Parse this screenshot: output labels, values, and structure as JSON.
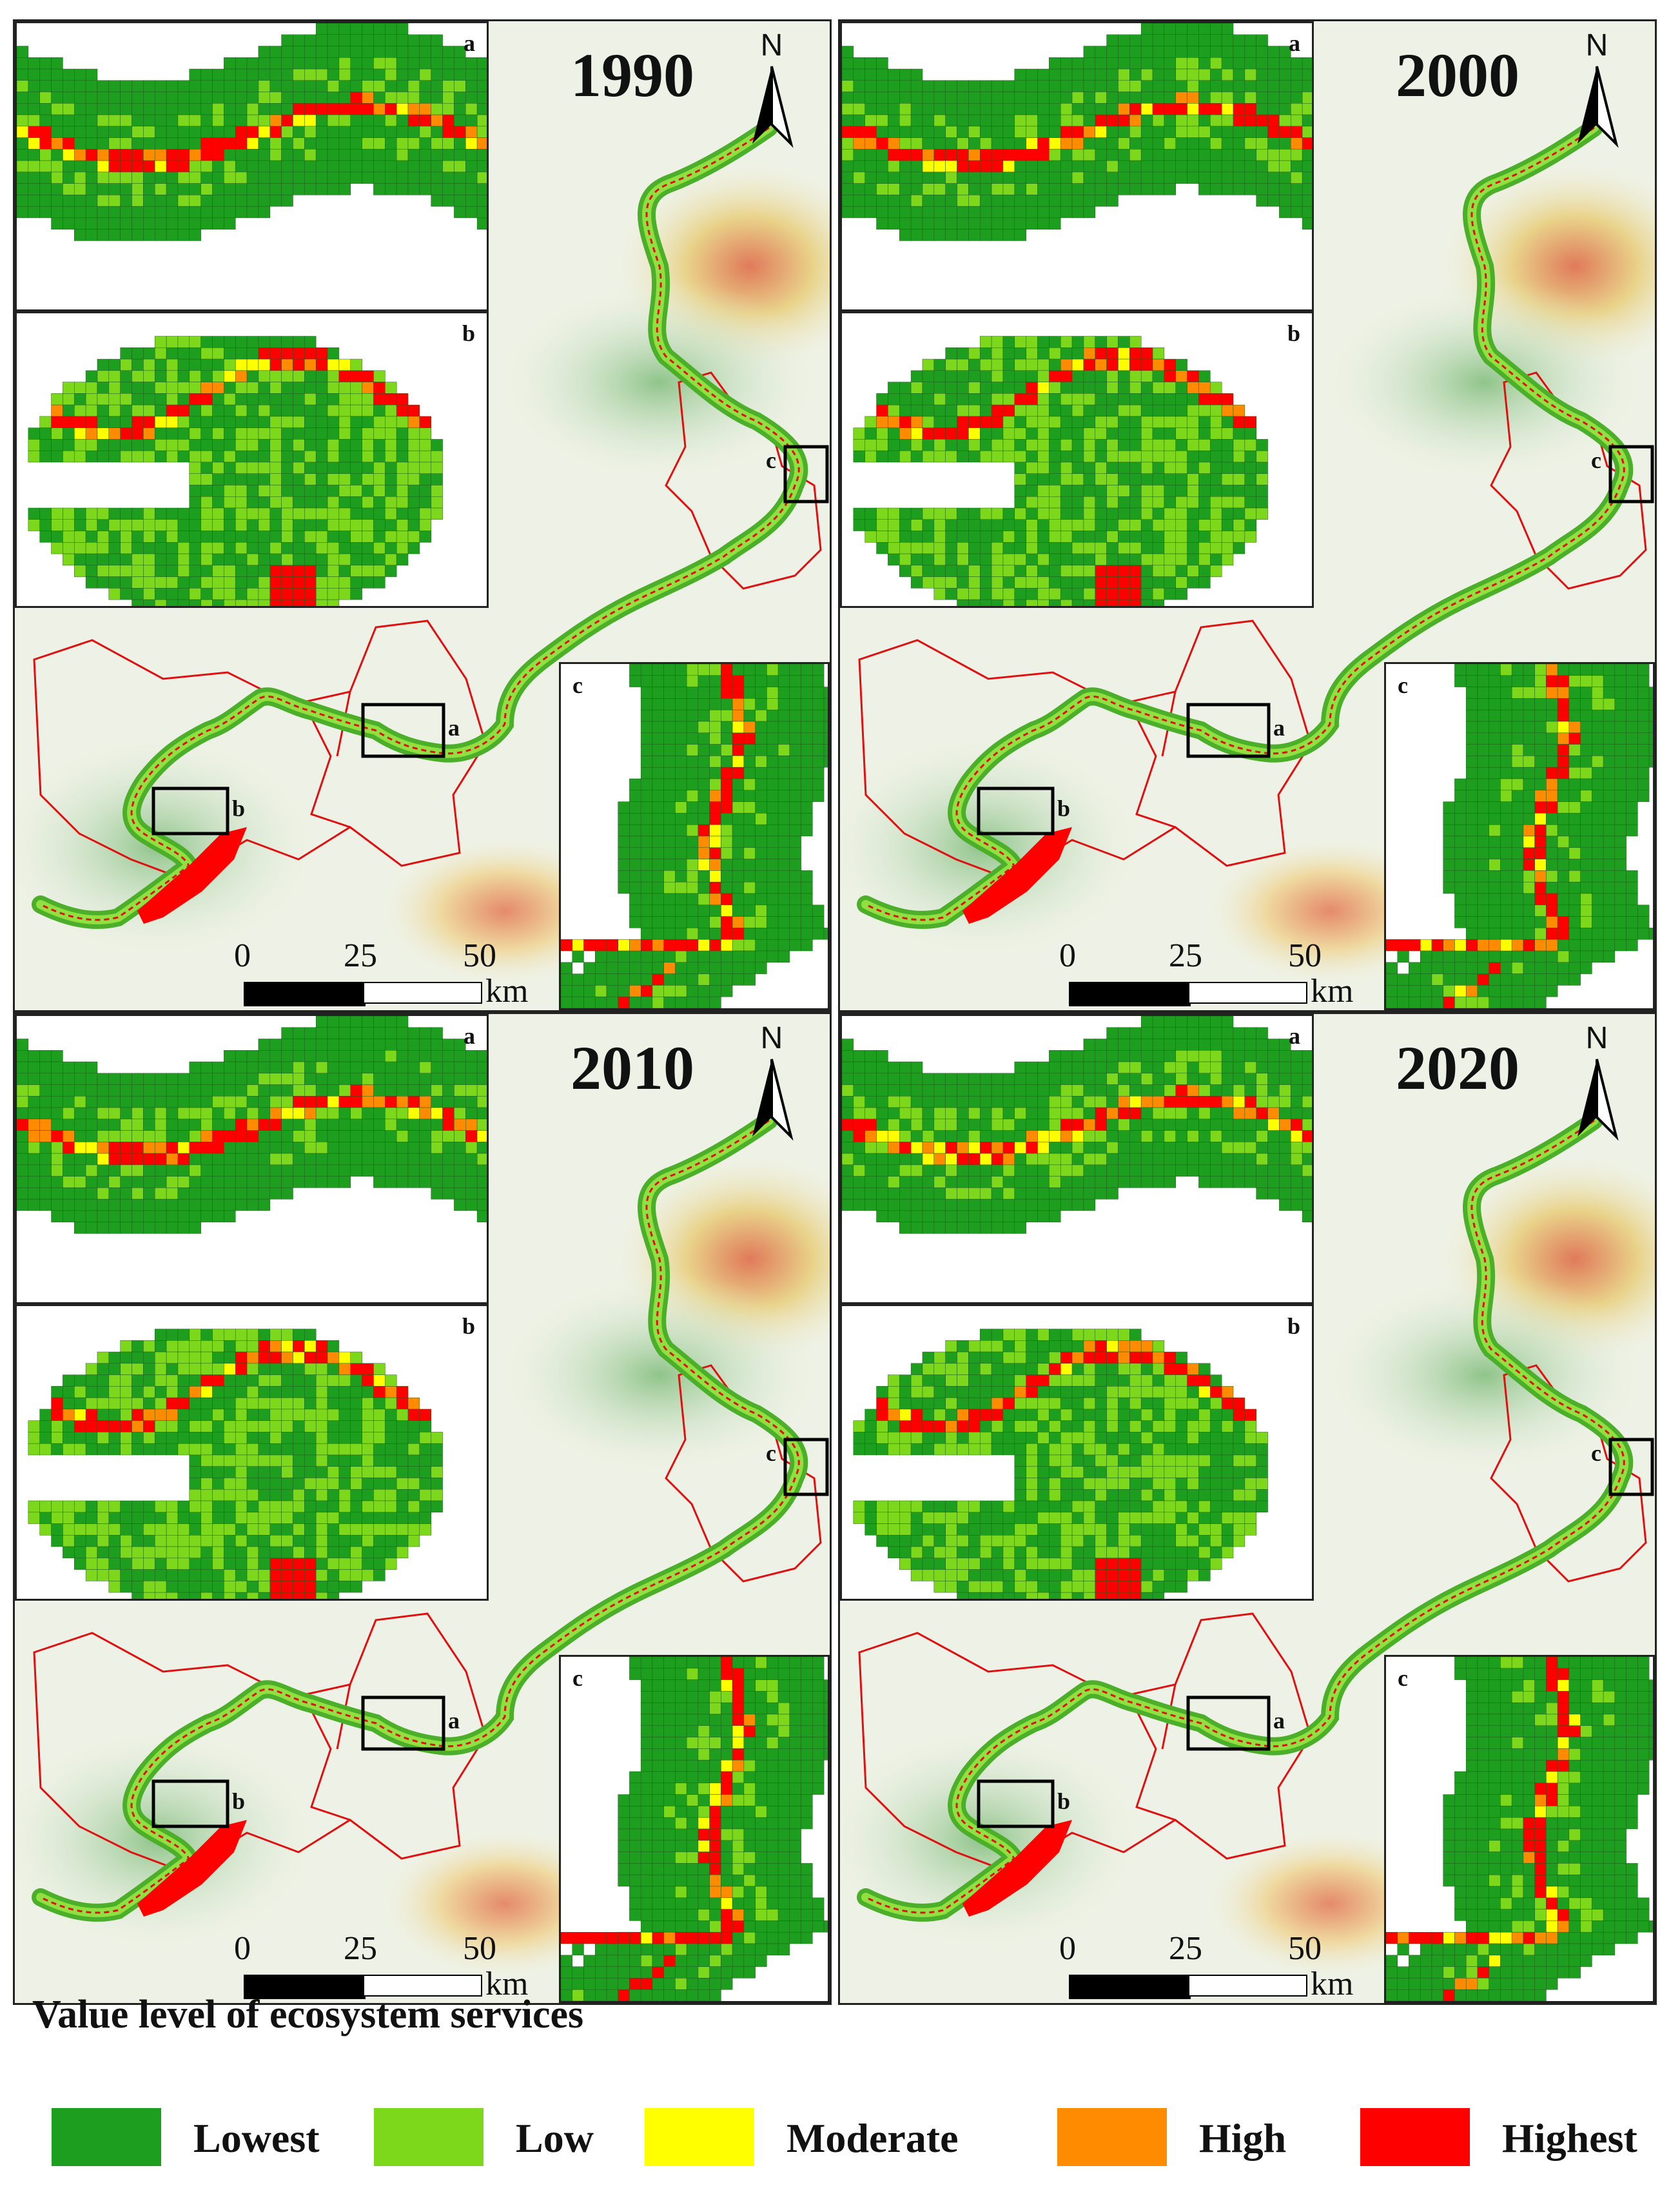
{
  "panels": [
    {
      "year": "1990"
    },
    {
      "year": "2000"
    },
    {
      "year": "2010"
    },
    {
      "year": "2020"
    }
  ],
  "north_label": "N",
  "inset_labels": {
    "a": "a",
    "b": "b",
    "c": "c"
  },
  "scale_bar": {
    "ticks": [
      "0",
      "25",
      "50"
    ],
    "unit": "km"
  },
  "legend": {
    "title": "Value level of ecosystem services",
    "items": [
      {
        "label": "Lowest",
        "color": "#1e9e1e"
      },
      {
        "label": "Low",
        "color": "#7dd81c"
      },
      {
        "label": "Moderate",
        "color": "#ffff00"
      },
      {
        "label": "High",
        "color": "#ff8c00"
      },
      {
        "label": "Highest",
        "color": "#ff0000"
      }
    ]
  }
}
